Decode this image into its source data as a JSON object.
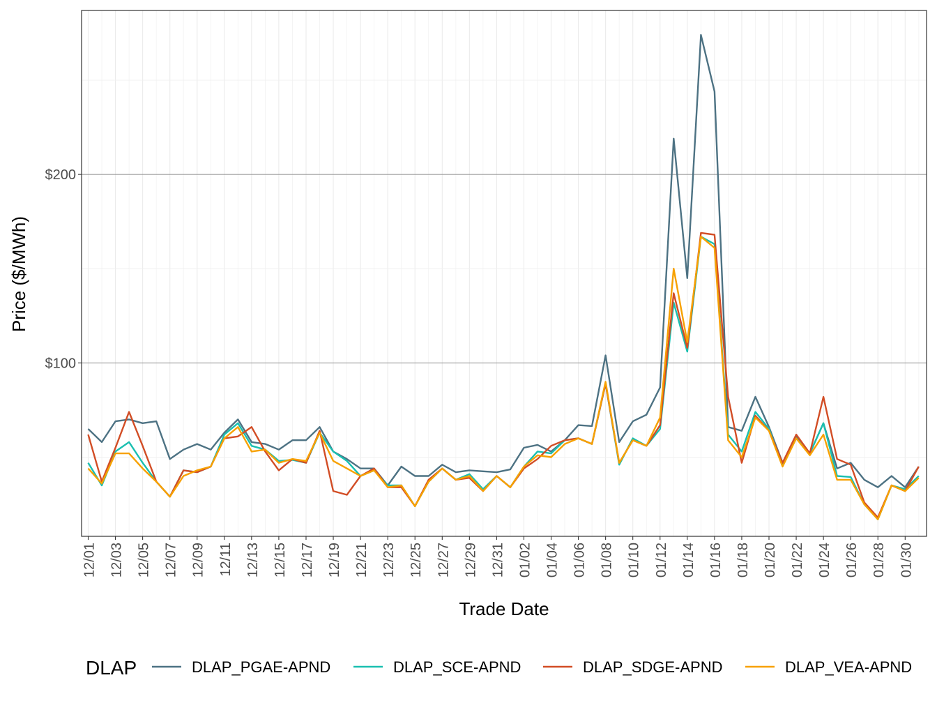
{
  "chart_data": {
    "type": "line",
    "xlabel": "Trade Date",
    "ylabel": "Price ($/MWh)",
    "x_tick_labels": [
      "12/01",
      "12/03",
      "12/05",
      "12/07",
      "12/09",
      "12/11",
      "12/13",
      "12/15",
      "12/17",
      "12/19",
      "12/21",
      "12/23",
      "12/25",
      "12/27",
      "12/29",
      "12/31",
      "01/02",
      "01/04",
      "01/06",
      "01/08",
      "01/10",
      "01/12",
      "01/14",
      "01/16",
      "01/18",
      "01/20",
      "01/22",
      "01/24",
      "01/26",
      "01/28",
      "01/30"
    ],
    "y_ticks": [
      {
        "value": 100,
        "label": "$100"
      },
      {
        "value": 200,
        "label": "$200"
      }
    ],
    "ylim": [
      8,
      287
    ],
    "grid": "on",
    "legend": {
      "title": "DLAP",
      "position": "bottom"
    },
    "x": [
      "12/01",
      "12/02",
      "12/03",
      "12/04",
      "12/05",
      "12/06",
      "12/07",
      "12/08",
      "12/09",
      "12/10",
      "12/11",
      "12/12",
      "12/13",
      "12/14",
      "12/15",
      "12/16",
      "12/17",
      "12/18",
      "12/19",
      "12/20",
      "12/21",
      "12/22",
      "12/23",
      "12/24",
      "12/25",
      "12/26",
      "12/27",
      "12/28",
      "12/29",
      "12/30",
      "12/31",
      "01/01",
      "01/02",
      "01/03",
      "01/04",
      "01/05",
      "01/06",
      "01/07",
      "01/08",
      "01/09",
      "01/10",
      "01/11",
      "01/12",
      "01/13",
      "01/14",
      "01/15",
      "01/16",
      "01/17",
      "01/18",
      "01/19",
      "01/20",
      "01/21",
      "01/22",
      "01/23",
      "01/24",
      "01/25",
      "01/26",
      "01/27",
      "01/28",
      "01/29",
      "01/30",
      "01/31"
    ],
    "series": [
      {
        "name": "DLAP_PGAE-APND",
        "color": "#4D7283",
        "values": [
          65,
          58,
          69,
          70,
          68,
          69,
          49,
          54,
          57,
          54,
          63,
          70,
          58,
          57,
          54,
          59,
          59,
          66,
          53,
          49,
          44,
          44,
          35,
          45,
          40,
          40,
          46,
          42,
          43,
          42.5,
          42,
          43.5,
          55,
          56.5,
          53,
          59,
          67,
          66.5,
          104,
          58,
          69,
          72.5,
          87,
          219,
          145,
          274,
          244,
          66,
          64,
          82,
          66,
          47,
          61,
          52,
          68,
          44,
          47,
          38,
          34,
          40,
          34,
          45
        ]
      },
      {
        "name": "DLAP_SCE-APND",
        "color": "#1ABFB0",
        "values": [
          47,
          35,
          53,
          58,
          47,
          37,
          29,
          43,
          42,
          45,
          62,
          68,
          56,
          54,
          48,
          48.5,
          47,
          63,
          53,
          48,
          40,
          43,
          35,
          35,
          24,
          37,
          44,
          38,
          41,
          33,
          40,
          34,
          45,
          53,
          52,
          59,
          60,
          57,
          89,
          46,
          60,
          56,
          65,
          132,
          106,
          167,
          163,
          62,
          53,
          74,
          65,
          46,
          60,
          52,
          68,
          40,
          39.5,
          25,
          17,
          35,
          33,
          40
        ]
      },
      {
        "name": "DLAP_SDGE-APND",
        "color": "#D24D25",
        "values": [
          62,
          37,
          55,
          74,
          56,
          37,
          29,
          43,
          42,
          45,
          60,
          61,
          66,
          53,
          43,
          49,
          47,
          64,
          32,
          30,
          40,
          44,
          34,
          34,
          24,
          38,
          44,
          38,
          39,
          32,
          40,
          34,
          44,
          49,
          56,
          59,
          60,
          57,
          89,
          47,
          59,
          56,
          67,
          137,
          108,
          169,
          168,
          82,
          47,
          72,
          64,
          47,
          62,
          52,
          82,
          49,
          46,
          26,
          18,
          35,
          32,
          45
        ]
      },
      {
        "name": "DLAP_VEA-APND",
        "color": "#F7A100",
        "values": [
          44,
          36,
          52,
          52,
          44,
          37,
          29,
          40,
          43,
          45,
          60,
          66,
          53,
          54,
          47,
          49,
          48,
          63,
          48,
          44,
          40,
          43,
          34,
          35,
          24,
          37,
          44,
          38,
          40,
          32,
          40,
          34,
          45,
          51,
          50,
          57,
          60,
          57,
          90,
          47,
          59,
          56,
          71,
          150,
          111,
          167,
          161,
          59,
          50,
          71,
          64,
          45,
          60,
          51,
          62,
          38,
          38,
          25,
          17,
          35,
          32,
          39
        ]
      }
    ]
  }
}
